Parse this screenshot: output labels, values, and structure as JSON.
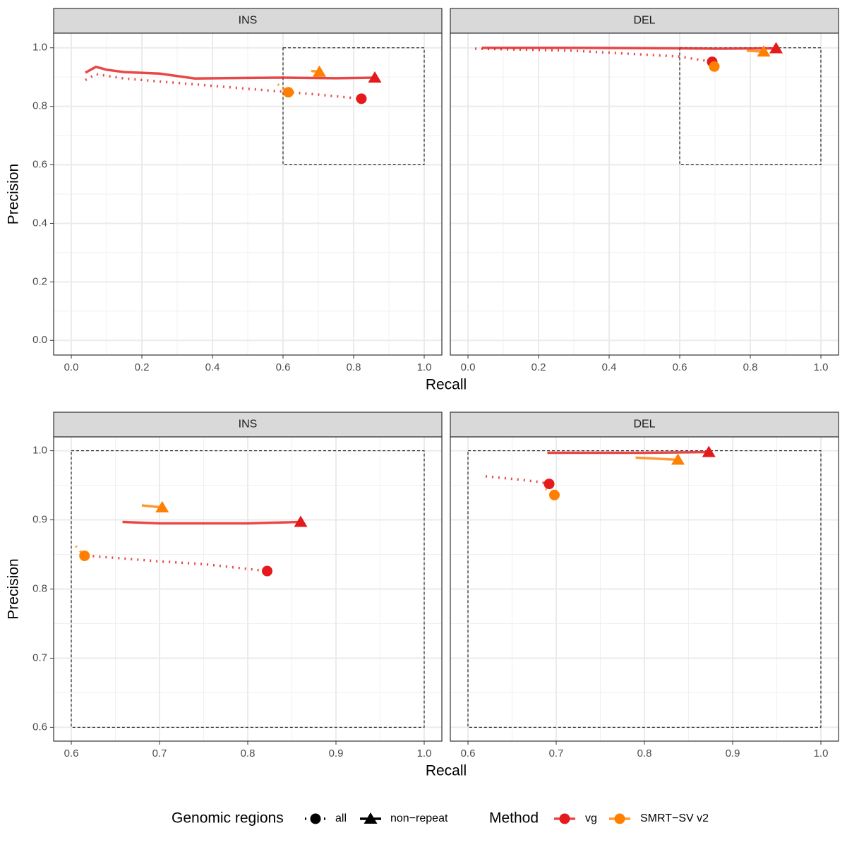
{
  "chart_data": [
    {
      "type": "line",
      "title": "INS",
      "x_label": "Recall",
      "y_label": "Precision",
      "xlim": [
        -0.05,
        1.05
      ],
      "ylim": [
        -0.05,
        1.05
      ],
      "xticks": [
        {
          "value": 0,
          "label": "0.0"
        },
        0.2,
        0.4,
        0.6,
        0.8,
        {
          "value": 1,
          "label": "1.0"
        }
      ],
      "yticks": [
        {
          "value": 0,
          "label": "0.0"
        },
        0.2,
        0.4,
        0.6,
        0.8,
        {
          "value": 1,
          "label": "1.0"
        }
      ],
      "grid": true,
      "zoom_box": {
        "x": [
          0.6,
          1.0
        ],
        "y": [
          0.6,
          1.0
        ]
      },
      "series": [
        {
          "method": "vg",
          "regions": "non−repeat",
          "color": "#e41a1c",
          "x": [
            0.04,
            0.07,
            0.1,
            0.15,
            0.25,
            0.35,
            0.5,
            0.6,
            0.75,
            0.86
          ],
          "values": [
            0.915,
            0.935,
            0.925,
            0.917,
            0.912,
            0.895,
            0.897,
            0.898,
            0.896,
            0.898
          ]
        },
        {
          "method": "vg",
          "regions": "all",
          "color": "#e41a1c",
          "x": [
            0.04,
            0.07,
            0.15,
            0.35,
            0.5,
            0.6,
            0.7,
            0.822
          ],
          "values": [
            0.89,
            0.91,
            0.895,
            0.875,
            0.86,
            0.85,
            0.84,
            0.826
          ]
        },
        {
          "method": "SMRT−SV v2",
          "regions": "non−repeat",
          "color": "#ff7f00",
          "x": [
            0.68,
            0.703
          ],
          "values": [
            0.921,
            0.918
          ]
        },
        {
          "method": "SMRT−SV v2",
          "regions": "all",
          "color": "#ff7f00",
          "x": [
            0.585,
            0.615
          ],
          "values": [
            0.875,
            0.848
          ]
        }
      ]
    },
    {
      "type": "line",
      "title": "DEL",
      "xlim": [
        -0.05,
        1.05
      ],
      "ylim": [
        -0.05,
        1.05
      ],
      "xticks": [
        {
          "value": 0,
          "label": "0.0"
        },
        0.2,
        0.4,
        0.6,
        0.8,
        {
          "value": 1,
          "label": "1.0"
        }
      ],
      "grid": true,
      "zoom_box": {
        "x": [
          0.6,
          1.0
        ],
        "y": [
          0.6,
          1.0
        ]
      },
      "series": [
        {
          "method": "vg",
          "regions": "non−repeat",
          "color": "#e41a1c",
          "x": [
            0.04,
            0.3,
            0.6,
            0.7,
            0.873
          ],
          "values": [
            1.0,
            1.0,
            0.998,
            0.997,
            0.998
          ]
        },
        {
          "method": "vg",
          "regions": "all",
          "color": "#e41a1c",
          "x": [
            0.02,
            0.3,
            0.6,
            0.692
          ],
          "values": [
            0.997,
            0.99,
            0.97,
            0.952
          ]
        },
        {
          "method": "SMRT−SV v2",
          "regions": "non−repeat",
          "color": "#ff7f00",
          "x": [
            0.79,
            0.838
          ],
          "values": [
            0.99,
            0.987
          ]
        },
        {
          "method": "SMRT−SV v2",
          "regions": "all",
          "color": "#ff7f00",
          "x": [
            0.688,
            0.698
          ],
          "values": [
            0.945,
            0.936
          ]
        }
      ]
    },
    {
      "type": "line",
      "title": "INS",
      "x_label": "Recall",
      "y_label": "Precision",
      "xlim": [
        0.58,
        1.02
      ],
      "ylim": [
        0.58,
        1.02
      ],
      "xticks": [
        0.6,
        0.7,
        0.8,
        0.9,
        {
          "value": 1,
          "label": "1.0"
        }
      ],
      "yticks": [
        0.6,
        0.7,
        0.8,
        0.9,
        {
          "value": 1,
          "label": "1.0"
        }
      ],
      "grid": true,
      "zoom_box": {
        "x": [
          0.6,
          1.0
        ],
        "y": [
          0.6,
          1.0
        ]
      },
      "series": [
        {
          "method": "vg",
          "regions": "non−repeat",
          "color": "#e41a1c",
          "x": [
            0.658,
            0.7,
            0.75,
            0.8,
            0.83,
            0.86
          ],
          "values": [
            0.897,
            0.895,
            0.895,
            0.895,
            0.896,
            0.897
          ]
        },
        {
          "method": "vg",
          "regions": "all",
          "color": "#e41a1c",
          "x": [
            0.61,
            0.7,
            0.75,
            0.822
          ],
          "values": [
            0.849,
            0.84,
            0.836,
            0.826
          ]
        },
        {
          "method": "SMRT−SV v2",
          "regions": "non−repeat",
          "color": "#ff7f00",
          "x": [
            0.68,
            0.703
          ],
          "values": [
            0.921,
            0.918
          ]
        },
        {
          "method": "SMRT−SV v2",
          "regions": "all",
          "color": "#ff7f00",
          "x": [
            0.605,
            0.615
          ],
          "values": [
            0.862,
            0.848
          ]
        }
      ]
    },
    {
      "type": "line",
      "title": "DEL",
      "xlim": [
        0.58,
        1.02
      ],
      "ylim": [
        0.58,
        1.02
      ],
      "xticks": [
        0.6,
        0.7,
        0.8,
        0.9,
        {
          "value": 1,
          "label": "1.0"
        }
      ],
      "grid": true,
      "zoom_box": {
        "x": [
          0.6,
          1.0
        ],
        "y": [
          0.6,
          1.0
        ]
      },
      "series": [
        {
          "method": "vg",
          "regions": "non−repeat",
          "color": "#e41a1c",
          "x": [
            0.69,
            0.8,
            0.873
          ],
          "values": [
            0.997,
            0.997,
            0.998
          ]
        },
        {
          "method": "vg",
          "regions": "all",
          "color": "#e41a1c",
          "x": [
            0.62,
            0.66,
            0.68,
            0.692
          ],
          "values": [
            0.963,
            0.958,
            0.955,
            0.952
          ]
        },
        {
          "method": "SMRT−SV v2",
          "regions": "non−repeat",
          "color": "#ff7f00",
          "x": [
            0.79,
            0.838
          ],
          "values": [
            0.99,
            0.987
          ]
        },
        {
          "method": "SMRT−SV v2",
          "regions": "all",
          "color": "#ff7f00",
          "x": [
            0.688,
            0.698
          ],
          "values": [
            0.945,
            0.936
          ]
        }
      ]
    }
  ],
  "legend": {
    "regions_title": "Genomic regions",
    "regions": [
      {
        "label": "all",
        "linestyle": "dotted",
        "marker": "circle"
      },
      {
        "label": "non−repeat",
        "linestyle": "solid",
        "marker": "triangle"
      }
    ],
    "method_title": "Method",
    "methods": [
      {
        "label": "vg",
        "color": "#e41a1c"
      },
      {
        "label": "SMRT−SV v2",
        "color": "#ff7f00"
      }
    ]
  }
}
